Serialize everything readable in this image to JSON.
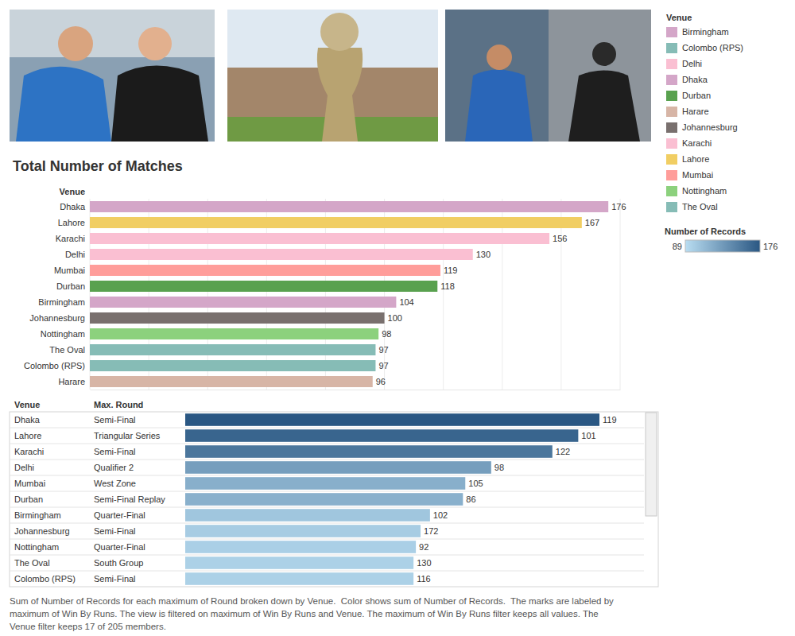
{
  "chart_data": [
    {
      "type": "bar",
      "orientation": "horizontal",
      "title": "Total Number of Matches",
      "y_label": "Venue",
      "categories": [
        "Dhaka",
        "Lahore",
        "Karachi",
        "Delhi",
        "Mumbai",
        "Durban",
        "Birmingham",
        "Johannesburg",
        "Nottingham",
        "The Oval",
        "Colombo (RPS)",
        "Harare"
      ],
      "values": [
        176,
        167,
        156,
        130,
        119,
        118,
        104,
        100,
        98,
        97,
        97,
        96
      ],
      "colors": [
        "#d4a6c8",
        "#f1ce63",
        "#fabfd2",
        "#fabfd2",
        "#ff9d9a",
        "#59a14f",
        "#d4a6c8",
        "#79706e",
        "#8cd17d",
        "#86bcb6",
        "#86bcb6",
        "#d7b5a6"
      ],
      "xlim": [
        0,
        180
      ],
      "xticks": [
        0,
        20,
        40,
        60,
        80,
        100,
        120,
        140,
        160,
        180
      ],
      "tick_labels": "y",
      "grid": true,
      "data_labels": true,
      "legend": "right",
      "legend_title": "Venue",
      "legend_items": [
        {
          "name": "Birmingham",
          "color": "#d4a6c8"
        },
        {
          "name": "Colombo (RPS)",
          "color": "#86bcb6"
        },
        {
          "name": "Delhi",
          "color": "#fabfd2"
        },
        {
          "name": "Dhaka",
          "color": "#d4a6c8"
        },
        {
          "name": "Durban",
          "color": "#59a14f"
        },
        {
          "name": "Harare",
          "color": "#d7b5a6"
        },
        {
          "name": "Johannesburg",
          "color": "#79706e"
        },
        {
          "name": "Karachi",
          "color": "#fabfd2"
        },
        {
          "name": "Lahore",
          "color": "#f1ce63"
        },
        {
          "name": "Mumbai",
          "color": "#ff9d9a"
        },
        {
          "name": "Nottingham",
          "color": "#8cd17d"
        },
        {
          "name": "The Oval",
          "color": "#86bcb6"
        }
      ]
    },
    {
      "type": "bar",
      "orientation": "horizontal",
      "columns": [
        "Venue",
        "Max. Round"
      ],
      "categories": [
        "Dhaka",
        "Lahore",
        "Karachi",
        "Delhi",
        "Mumbai",
        "Durban",
        "Birmingham",
        "Johannesburg",
        "Nottingham",
        "The Oval",
        "Colombo (RPS)"
      ],
      "max_round": [
        "Semi-Final",
        "Triangular Series",
        "Semi-Final",
        "Qualifier 2",
        "West Zone",
        "Semi-Final Replay",
        "Quarter-Final",
        "Semi-Final",
        "Quarter-Final",
        "South Group",
        "Semi-Final"
      ],
      "values": [
        176,
        167,
        156,
        130,
        119,
        118,
        104,
        100,
        98,
        97,
        97
      ],
      "win_by_runs": [
        119,
        101,
        122,
        98,
        105,
        86,
        102,
        172,
        92,
        130,
        116
      ],
      "xlim": [
        0,
        176
      ],
      "tick_labels": "y",
      "grid": false,
      "colorbar": {
        "title": "Number of Records",
        "range": [
          89,
          176
        ],
        "ticks": [
          89,
          176
        ]
      },
      "color_scale": [
        "#b9ddf1",
        "#2a5783"
      ],
      "caption": [
        "Sum of Number of Records for each maximum of Round broken down by Venue.  Color shows sum of Number of Records.  The marks are labeled by",
        "maximum of Win By Runs. The view is filtered on maximum of Win By Runs and Venue. The maximum of Win By Runs filter keeps all values. The",
        "Venue filter keeps 17 of 205 members."
      ]
    }
  ]
}
